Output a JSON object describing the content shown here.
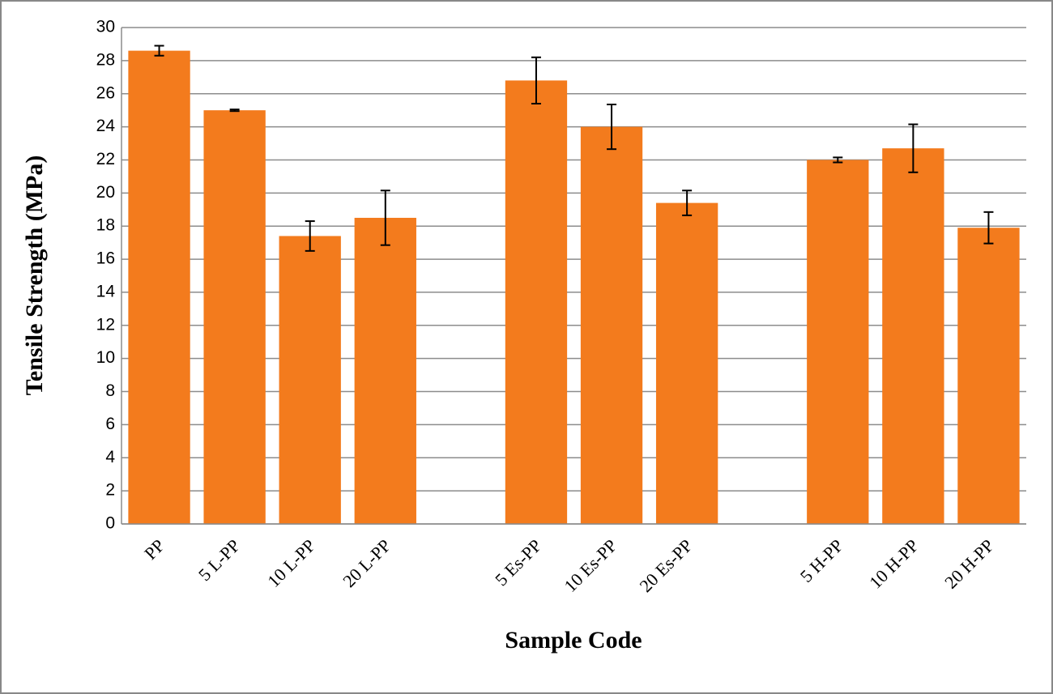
{
  "chart_data": {
    "type": "bar",
    "x_label": "Sample Code",
    "y_label": "Tensile Strength (MPa)",
    "categories": [
      "PP",
      "5 L-PP",
      "10 L-PP",
      "20 L-PP",
      null,
      "5 Es-PP",
      "10 Es-PP",
      "20 Es-PP",
      null,
      "5 H-PP",
      "10 H-PP",
      "20 H-PP"
    ],
    "values": [
      28.6,
      25.0,
      17.4,
      18.5,
      null,
      26.8,
      24.0,
      19.4,
      null,
      22.0,
      22.7,
      17.9
    ],
    "errors": [
      0.3,
      0.05,
      0.9,
      1.65,
      null,
      1.4,
      1.35,
      0.75,
      null,
      0.15,
      1.45,
      0.95
    ],
    "color": "#f37b1d",
    "ylim": [
      0,
      30
    ],
    "yticks": [
      0,
      2,
      4,
      6,
      8,
      10,
      12,
      14,
      16,
      18,
      20,
      22,
      24,
      26,
      28,
      30
    ],
    "grid": true
  }
}
